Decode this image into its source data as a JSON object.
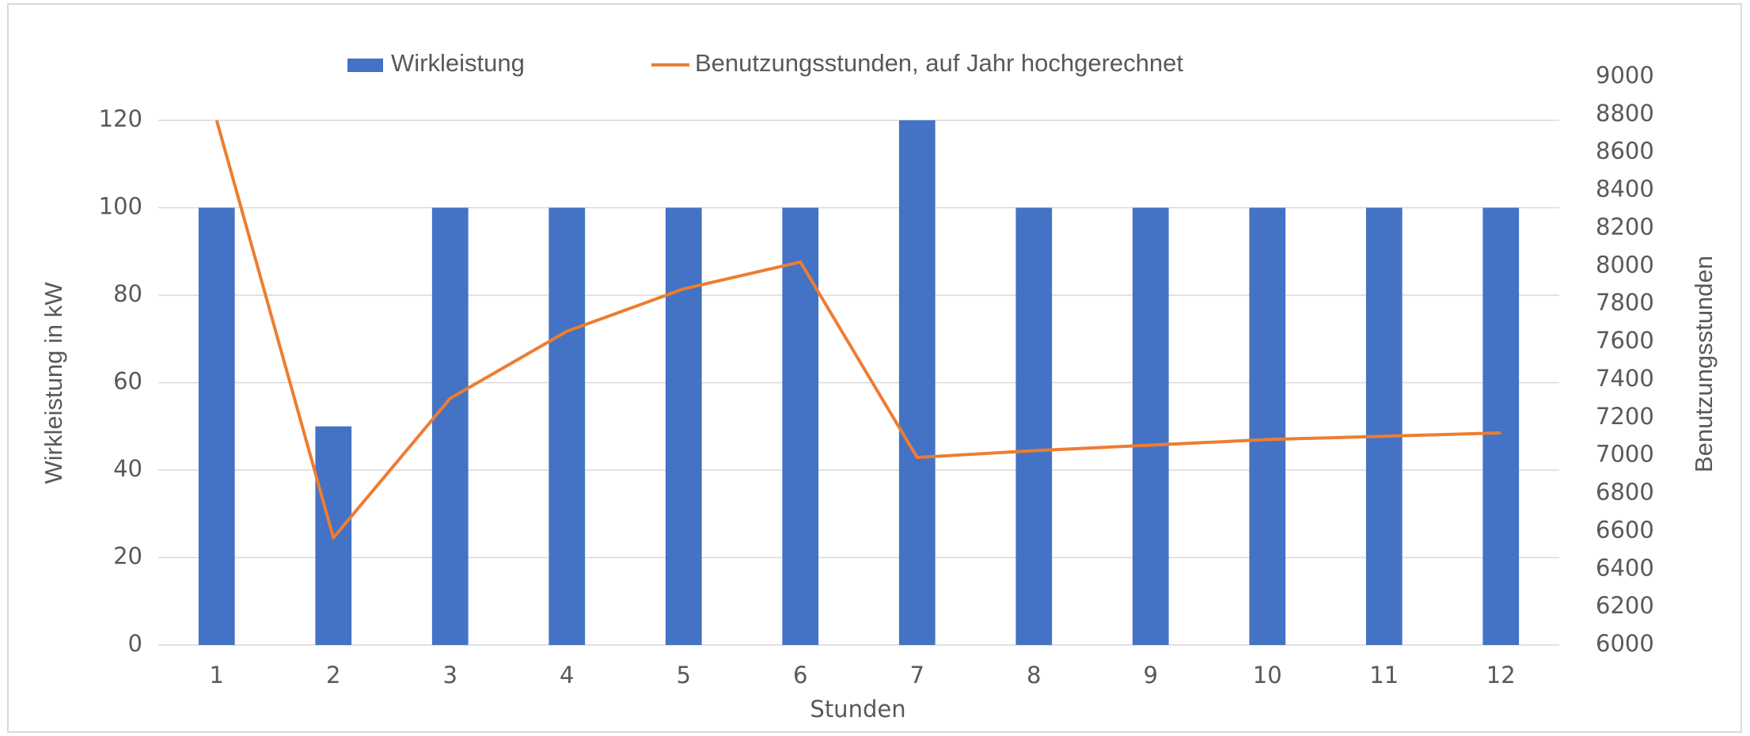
{
  "chart_data": {
    "type": "bar_line",
    "categories": [
      "1",
      "2",
      "3",
      "4",
      "5",
      "6",
      "7",
      "8",
      "9",
      "10",
      "11",
      "12"
    ],
    "series": [
      {
        "name": "Wirkleistung",
        "color": "#4472c4",
        "type": "bar",
        "values": [
          100,
          50,
          100,
          100,
          100,
          100,
          120,
          100,
          100,
          100,
          100,
          100
        ]
      },
      {
        "name": "Benutzungsstunden, auf Jahr hochgerechnet",
        "color": "#ed7d31",
        "type": "line",
        "axis": "y2",
        "values": [
          8770,
          6566,
          7302,
          7656,
          7880,
          8022,
          6990,
          7026,
          7055,
          7085,
          7102,
          7120
        ]
      }
    ],
    "xlabel": "Stunden",
    "ylabel": "Wirkleistung in kW",
    "y2label": "Benutzungsstunden",
    "ylim": [
      0,
      120
    ],
    "yticks": [
      0,
      20,
      40,
      60,
      80,
      100,
      120
    ],
    "y2lim": [
      6000,
      9000
    ],
    "y2ticks": [
      6000,
      6200,
      6400,
      6600,
      6800,
      7000,
      7200,
      7400,
      7600,
      7800,
      8000,
      8200,
      8400,
      8600,
      8800,
      9000
    ],
    "grid": true,
    "legend": "top"
  }
}
